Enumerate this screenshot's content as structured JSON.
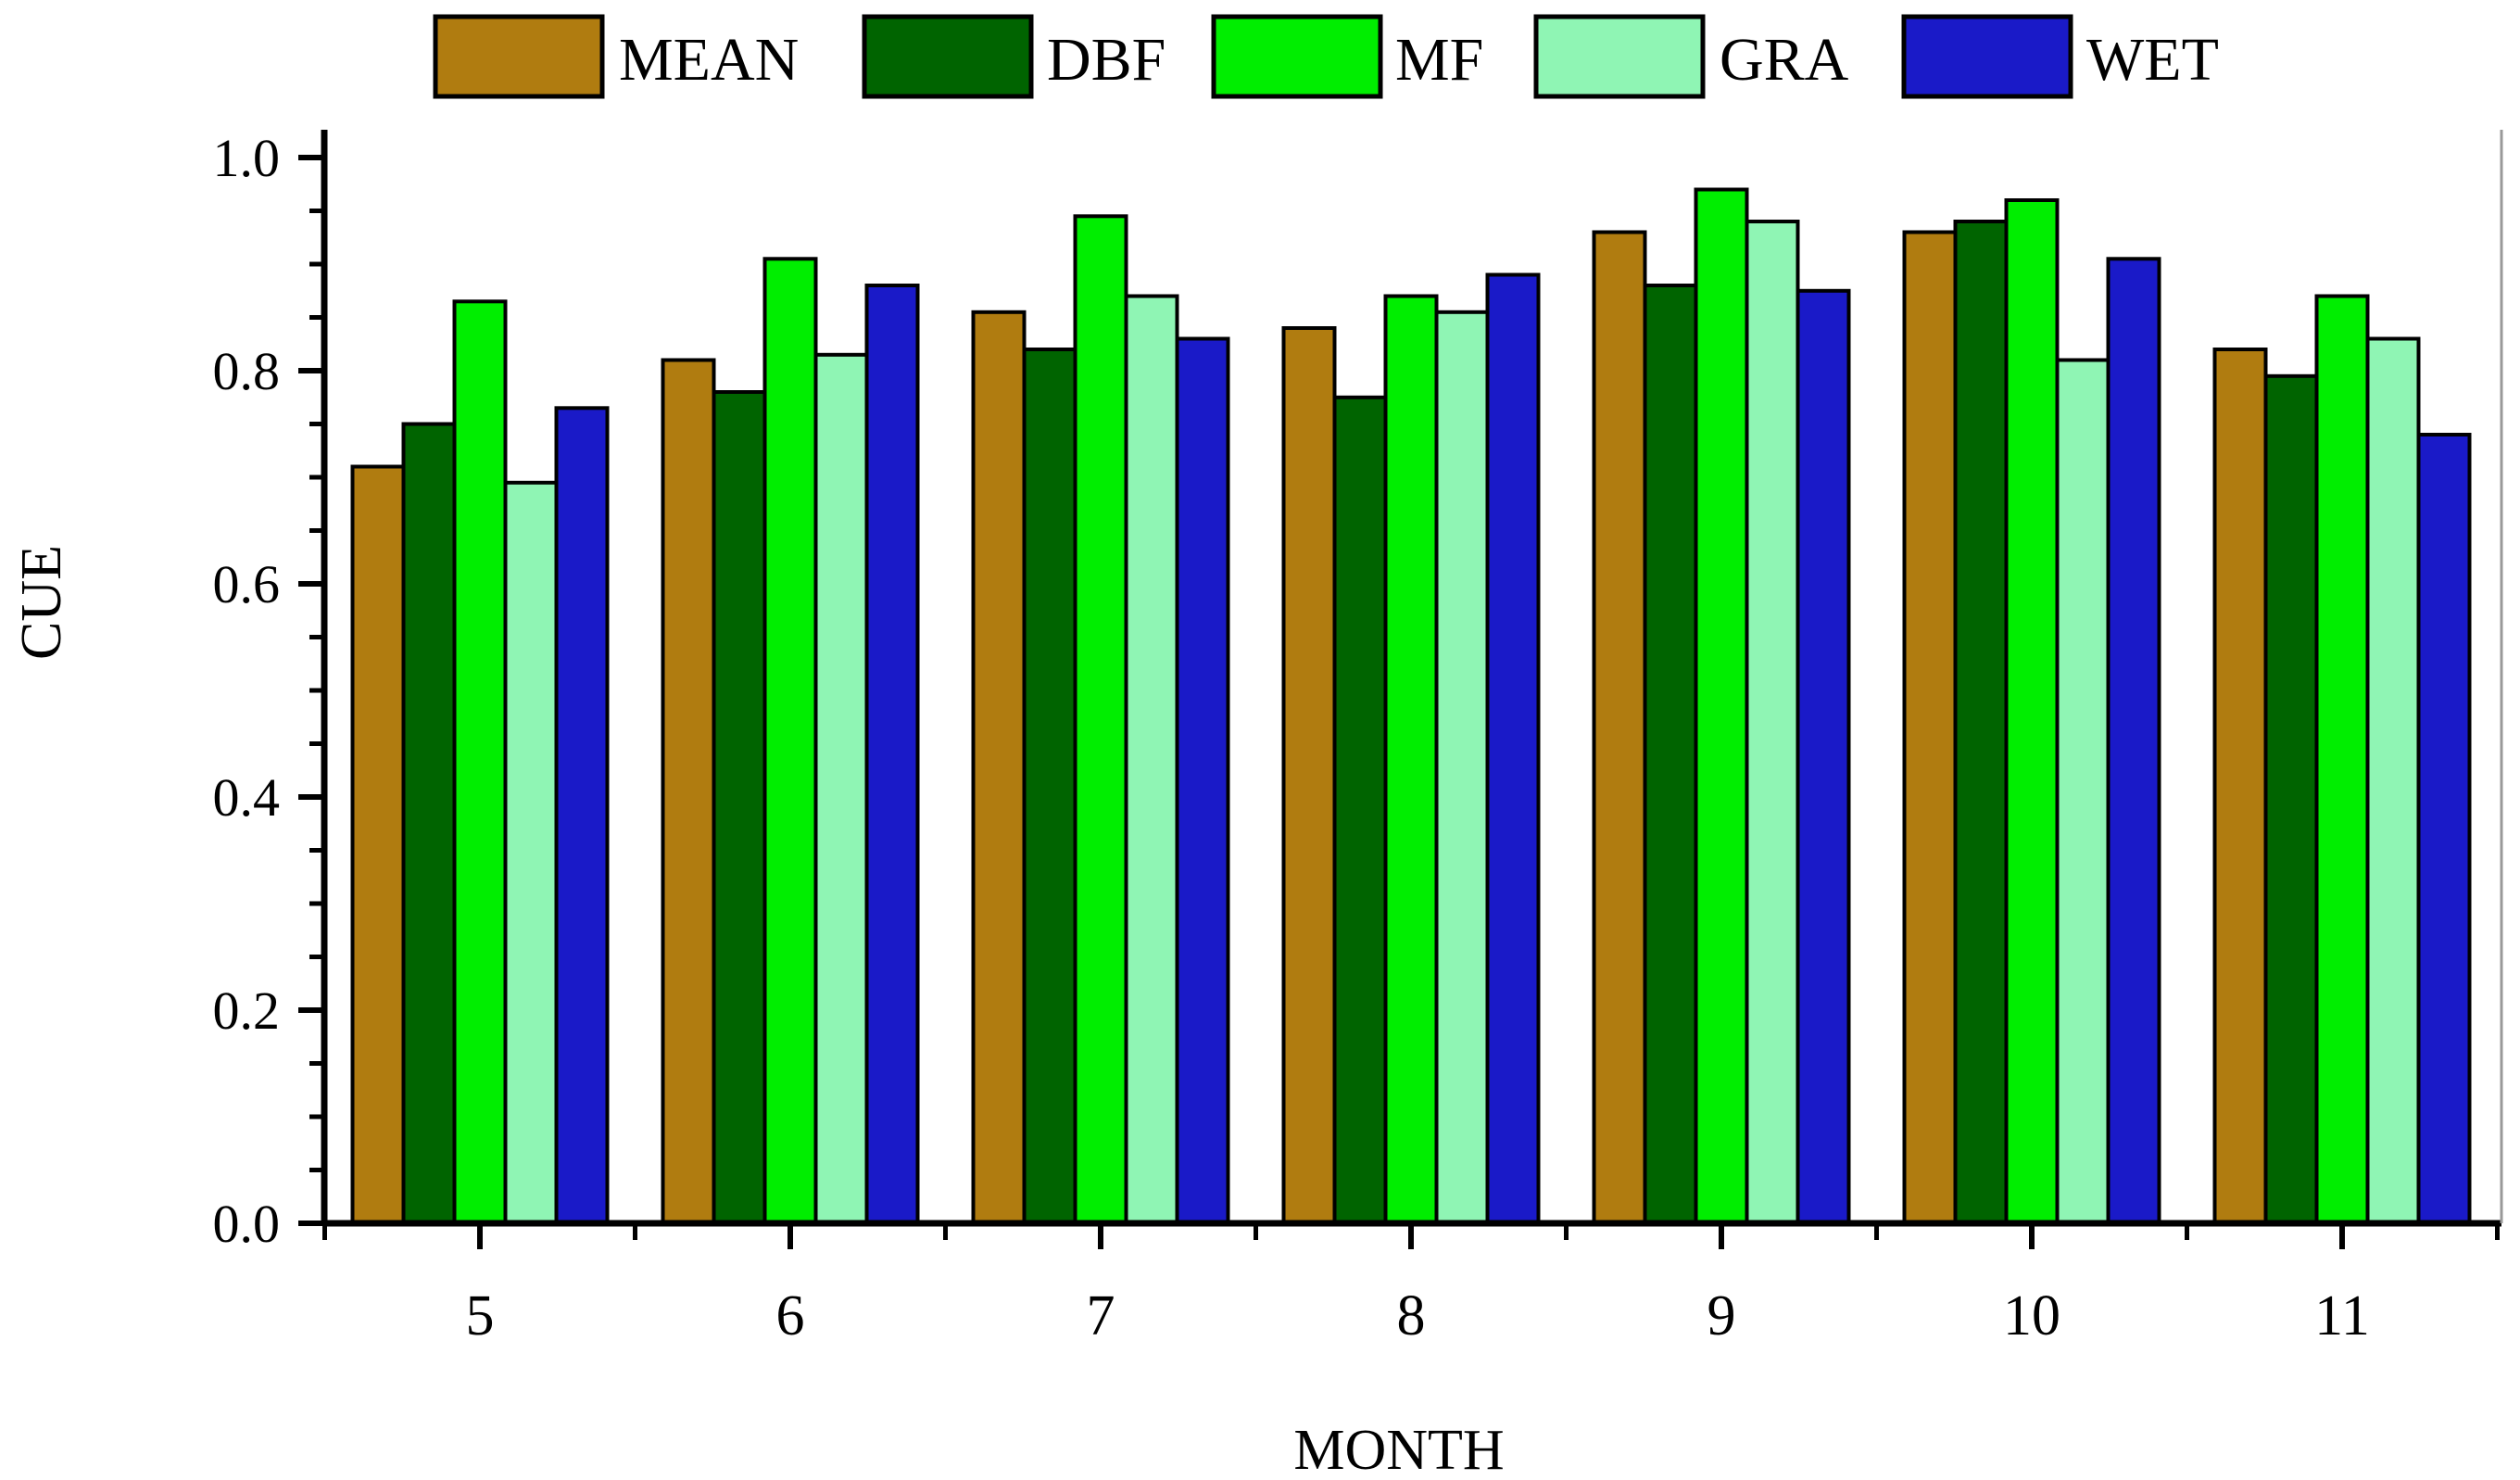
{
  "chart_data": {
    "type": "bar",
    "title": "",
    "xlabel": "MONTH",
    "ylabel": "CUE",
    "categories": [
      "5",
      "6",
      "7",
      "8",
      "9",
      "10",
      "11"
    ],
    "ylim": [
      0,
      1.0
    ],
    "yticks": [
      "0.0",
      "0.2",
      "0.4",
      "0.6",
      "0.8",
      "1.0"
    ],
    "grid": false,
    "legend_position": "top",
    "series": [
      {
        "name": "MEAN",
        "color": "#B07C10",
        "values": [
          0.71,
          0.81,
          0.855,
          0.84,
          0.93,
          0.93,
          0.82
        ]
      },
      {
        "name": "DBF",
        "color": "#006400",
        "values": [
          0.75,
          0.78,
          0.82,
          0.775,
          0.88,
          0.94,
          0.795
        ]
      },
      {
        "name": "MF",
        "color": "#00EE00",
        "values": [
          0.865,
          0.905,
          0.945,
          0.87,
          0.97,
          0.96,
          0.87
        ]
      },
      {
        "name": "GRA",
        "color": "#8FF5B4",
        "values": [
          0.695,
          0.815,
          0.87,
          0.855,
          0.94,
          0.81,
          0.83
        ]
      },
      {
        "name": "WET",
        "color": "#1A1AC8",
        "values": [
          0.765,
          0.88,
          0.83,
          0.89,
          0.875,
          0.905,
          0.74
        ]
      }
    ]
  }
}
